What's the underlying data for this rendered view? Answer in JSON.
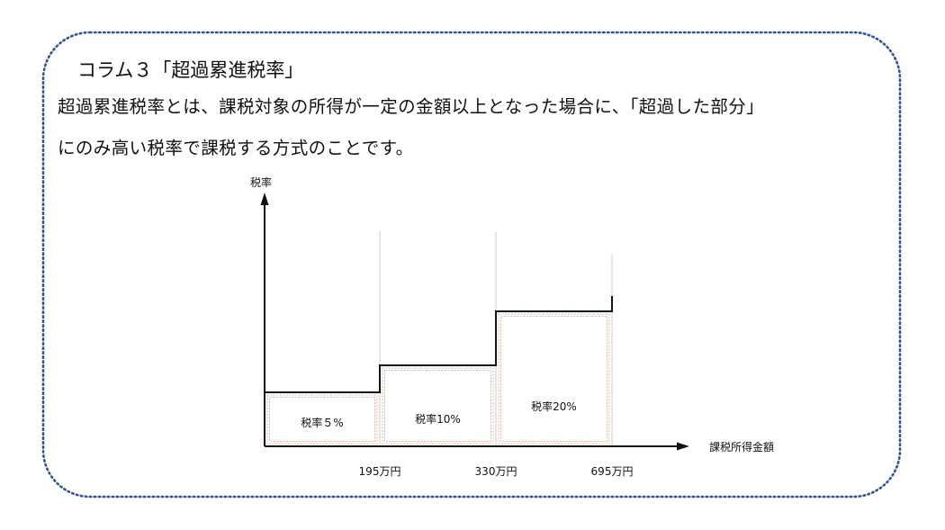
{
  "column": {
    "title": "コラム３「超過累進税率」",
    "text_line_1": "超過累進税率とは、課税対象の所得が一定の金額以上となった場合に、「超過した部分」",
    "text_line_2": "にのみ高い税率で課税する方式のことです。"
  },
  "colors": {
    "frame_border": "#2f5597",
    "step_line": "#111111",
    "bracket_box": "#e8b4a8",
    "guide_line": "#cccccc"
  },
  "chart_data": {
    "type": "step",
    "ylabel": "税率",
    "xlabel": "課税所得金額",
    "x_ticks": [
      "195万円",
      "330万円",
      "695万円"
    ],
    "x_breaks": [
      0,
      195,
      330,
      695
    ],
    "brackets": [
      {
        "label": "税率５%",
        "from": 0,
        "to": 195,
        "rate": 5
      },
      {
        "label": "税率10%",
        "from": 195,
        "to": 330,
        "rate": 10
      },
      {
        "label": "税率20%",
        "from": 330,
        "to": 695,
        "rate": 20
      }
    ]
  }
}
